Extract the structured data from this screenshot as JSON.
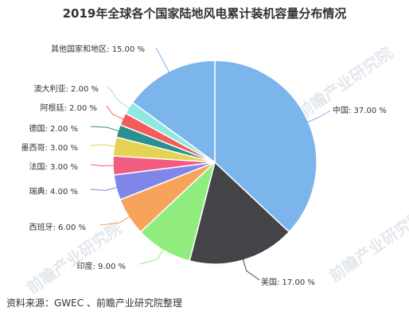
{
  "chart_data": {
    "type": "pie",
    "title": "2019年全球各个国家陆地风电累计装机容量分布情况",
    "slices": [
      {
        "label": "中国",
        "value": 37.0,
        "display": "中国: 37.00 %",
        "color": "#7cb5ec"
      },
      {
        "label": "美国",
        "value": 17.0,
        "display": "美国: 17.00 %",
        "color": "#434348"
      },
      {
        "label": "印度",
        "value": 9.0,
        "display": "印度: 9.00 %",
        "color": "#90ed7d"
      },
      {
        "label": "西班牙",
        "value": 6.0,
        "display": "西班牙: 6.00 %",
        "color": "#f7a35c"
      },
      {
        "label": "瑞典",
        "value": 4.0,
        "display": "瑞典: 4.00 %",
        "color": "#8085e9"
      },
      {
        "label": "法国",
        "value": 3.0,
        "display": "法国: 3.00 %",
        "color": "#f15c80"
      },
      {
        "label": "墨西哥",
        "value": 3.0,
        "display": "墨西哥: 3.00 %",
        "color": "#e4d354"
      },
      {
        "label": "德国",
        "value": 2.0,
        "display": "德国: 2.00 %",
        "color": "#2b908f"
      },
      {
        "label": "阿根廷",
        "value": 2.0,
        "display": "阿根廷: 2.00 %",
        "color": "#f45b5b"
      },
      {
        "label": "澳大利亚",
        "value": 2.0,
        "display": "澳大利亚: 2.00 %",
        "color": "#91e8e1"
      },
      {
        "label": "其他国家和地区",
        "value": 15.0,
        "display": "其他国家和地区: 15.00 %",
        "color": "#7cb5ec"
      }
    ]
  },
  "source": "资料来源：GWEC 、前瞻产业研究院整理",
  "watermark": "前瞻产业研究院"
}
